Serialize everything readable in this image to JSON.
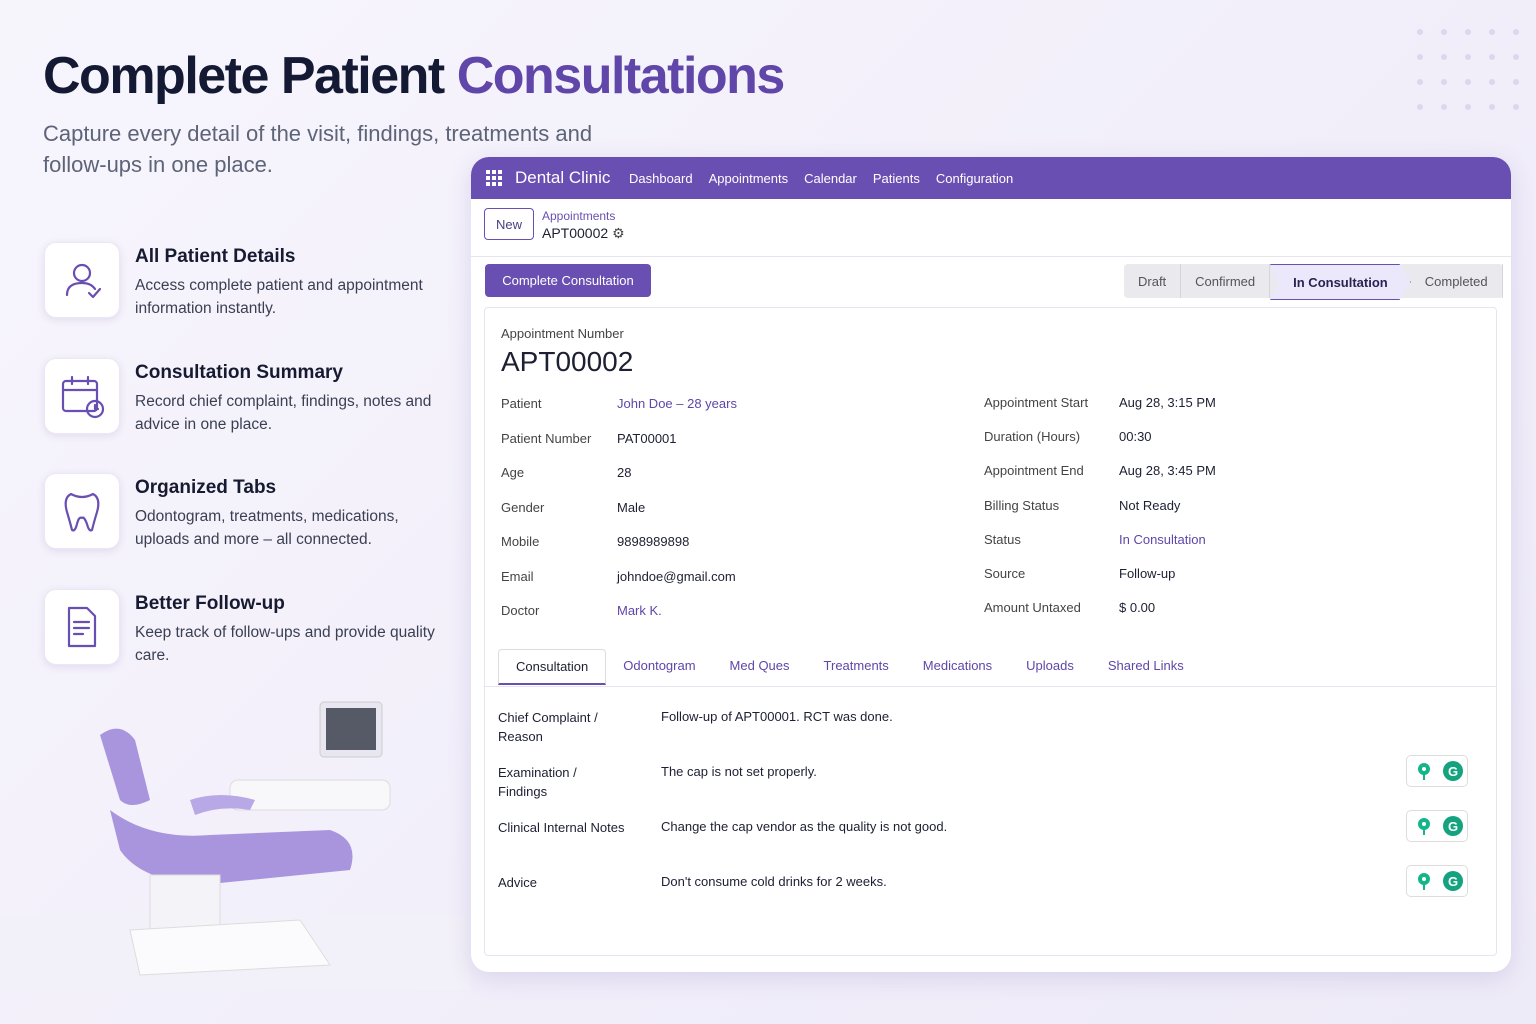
{
  "hero": {
    "title_dark": "Complete Patient",
    "title_accent": "Consultations",
    "subtitle": "Capture every detail of the visit, findings, treatments and follow-ups in one place."
  },
  "features": [
    {
      "title": "All Patient Details",
      "description": "Access complete patient and appointment information instantly."
    },
    {
      "title": "Consultation Summary",
      "description": "Record chief complaint, findings, notes and advice in one place."
    },
    {
      "title": "Organized Tabs",
      "description": "Odontogram, treatments, medications, uploads and more – all connected."
    },
    {
      "title": "Better Follow-up",
      "description": "Keep track of follow-ups and provide quality care."
    }
  ],
  "app": {
    "brand": "Dental Clinic",
    "nav": [
      "Dashboard",
      "Appointments",
      "Calendar",
      "Patients",
      "Configuration"
    ],
    "new_button": "New",
    "breadcrumb_parent": "Appointments",
    "breadcrumb_current": "APT00002",
    "action_button": "Complete Consultation",
    "stages": [
      "Draft",
      "Confirmed",
      "In Consultation",
      "Completed"
    ],
    "active_stage": 2,
    "form": {
      "number_label": "Appointment Number",
      "number": "APT00002",
      "left_fields": [
        {
          "label": "Patient",
          "value": "John Doe – 28 years",
          "link": true
        },
        {
          "label": "Patient Number",
          "value": "PAT00001"
        },
        {
          "label": "Age",
          "value": "28"
        },
        {
          "label": "Gender",
          "value": "Male"
        },
        {
          "label": "Mobile",
          "value": "9898989898"
        },
        {
          "label": "Email",
          "value": "johndoe@gmail.com"
        },
        {
          "label": "Doctor",
          "value": "Mark K.",
          "link": true
        }
      ],
      "right_fields": [
        {
          "label": "Appointment Start",
          "value": "Aug 28, 3:15 PM"
        },
        {
          "label": "Duration (Hours)",
          "value": "00:30"
        },
        {
          "label": "Appointment End",
          "value": "Aug 28, 3:45 PM"
        },
        {
          "label": "Billing Status",
          "value": "Not Ready"
        },
        {
          "label": "Status",
          "value": "In Consultation",
          "link": true
        },
        {
          "label": "Source",
          "value": "Follow-up"
        },
        {
          "label": "Amount Untaxed",
          "value": "$ 0.00"
        }
      ],
      "tabs": [
        "Consultation",
        "Odontogram",
        "Med Ques",
        "Treatments",
        "Medications",
        "Uploads",
        "Shared Links"
      ],
      "active_tab": 0,
      "consultation": [
        {
          "label": "Chief Complaint / Reason",
          "value": "Follow-up of APT00001. RCT was done."
        },
        {
          "label": "Examination / Findings",
          "value": "The cap is not set properly."
        },
        {
          "label": "Clinical Internal Notes",
          "value": "Change the cap vendor as the quality is not good."
        },
        {
          "label": "Advice",
          "value": "Don't consume cold drinks for 2 weeks."
        }
      ]
    }
  }
}
